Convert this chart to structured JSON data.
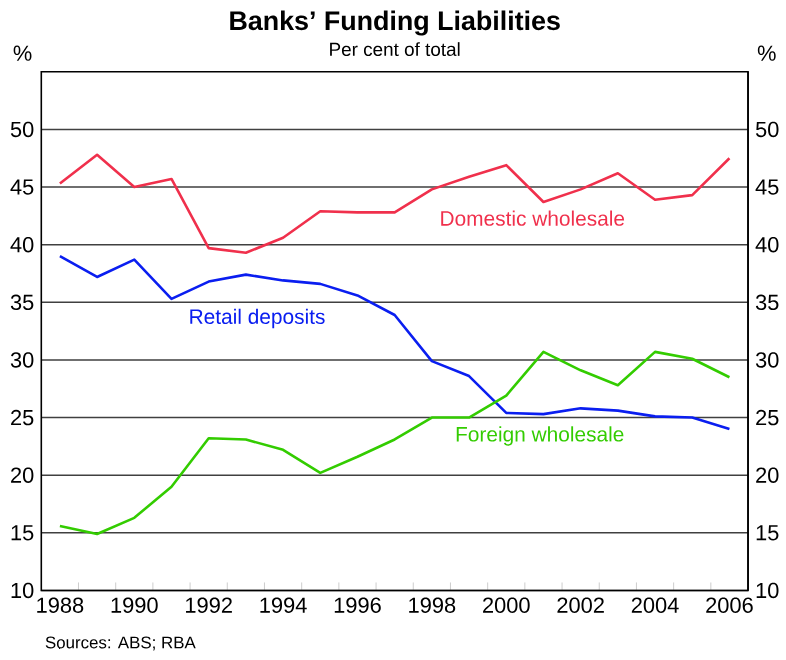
{
  "chart_data": {
    "type": "line",
    "title": "Banks’ Funding Liabilities",
    "subtitle": "Per cent of total",
    "ylabel": "%",
    "y2label": "%",
    "annotations": [
      "Sources: ABS; RBA"
    ],
    "x": [
      1988.5,
      1989.5,
      1990.5,
      1991.5,
      1992.5,
      1993.5,
      1994.5,
      1995.5,
      1996.5,
      1997.5,
      1998.5,
      1999.5,
      2000.5,
      2001.5,
      2002.5,
      2003.5,
      2004.5,
      2005.5,
      2006.5
    ],
    "series": [
      {
        "name": "Domestic wholesale",
        "color": "#f0304c",
        "values": [
          45.3,
          47.8,
          45.0,
          45.7,
          39.7,
          39.3,
          40.6,
          42.9,
          42.8,
          42.8,
          44.8,
          45.9,
          46.9,
          43.7,
          44.8,
          46.2,
          43.9,
          44.3,
          47.5
        ]
      },
      {
        "name": "Retail deposits",
        "color": "#0a1ef0",
        "values": [
          39.0,
          37.2,
          38.7,
          35.3,
          36.8,
          37.4,
          36.9,
          36.6,
          35.6,
          33.9,
          29.9,
          28.6,
          25.4,
          25.3,
          25.8,
          25.6,
          25.1,
          25.0,
          24.0
        ]
      },
      {
        "name": "Foreign wholesale",
        "color": "#33cc00",
        "values": [
          15.6,
          14.9,
          16.3,
          19.0,
          23.2,
          23.1,
          22.2,
          20.2,
          21.6,
          23.1,
          25.0,
          25.0,
          26.9,
          30.7,
          29.1,
          27.8,
          30.7,
          30.1,
          28.5
        ]
      }
    ],
    "xlim": [
      1988,
      2007
    ],
    "xticks": [
      {
        "value": 1988.5,
        "label": "1988"
      },
      {
        "value": 1990.5,
        "label": "1990"
      },
      {
        "value": 1992.5,
        "label": "1992"
      },
      {
        "value": 1994.5,
        "label": "1994"
      },
      {
        "value": 1996.5,
        "label": "1996"
      },
      {
        "value": 1998.5,
        "label": "1998"
      },
      {
        "value": 2000.5,
        "label": "2000"
      },
      {
        "value": 2002.5,
        "label": "2002"
      },
      {
        "value": 2004.5,
        "label": "2004"
      },
      {
        "value": 2006.5,
        "label": "2006"
      },
      {
        "value": 1989,
        "label": null
      },
      {
        "value": 1990,
        "label": null
      },
      {
        "value": 1991,
        "label": null
      },
      {
        "value": 1992,
        "label": null
      },
      {
        "value": 1993,
        "label": null
      },
      {
        "value": 1994,
        "label": null
      },
      {
        "value": 1995,
        "label": null
      },
      {
        "value": 1996,
        "label": null
      },
      {
        "value": 1997,
        "label": null
      },
      {
        "value": 1998,
        "label": null
      },
      {
        "value": 1999,
        "label": null
      },
      {
        "value": 2000,
        "label": null
      },
      {
        "value": 2001,
        "label": null
      },
      {
        "value": 2002,
        "label": null
      },
      {
        "value": 2003,
        "label": null
      },
      {
        "value": 2004,
        "label": null
      },
      {
        "value": 2005,
        "label": null
      },
      {
        "value": 2006,
        "label": null
      }
    ],
    "ylim": [
      10,
      55
    ],
    "yticks": [
      10,
      15,
      20,
      25,
      30,
      35,
      40,
      45,
      50
    ],
    "y2lim": [
      10,
      55
    ],
    "y2ticks": [
      10,
      15,
      20,
      25,
      30,
      35,
      40,
      45,
      50
    ],
    "grid": "y"
  }
}
